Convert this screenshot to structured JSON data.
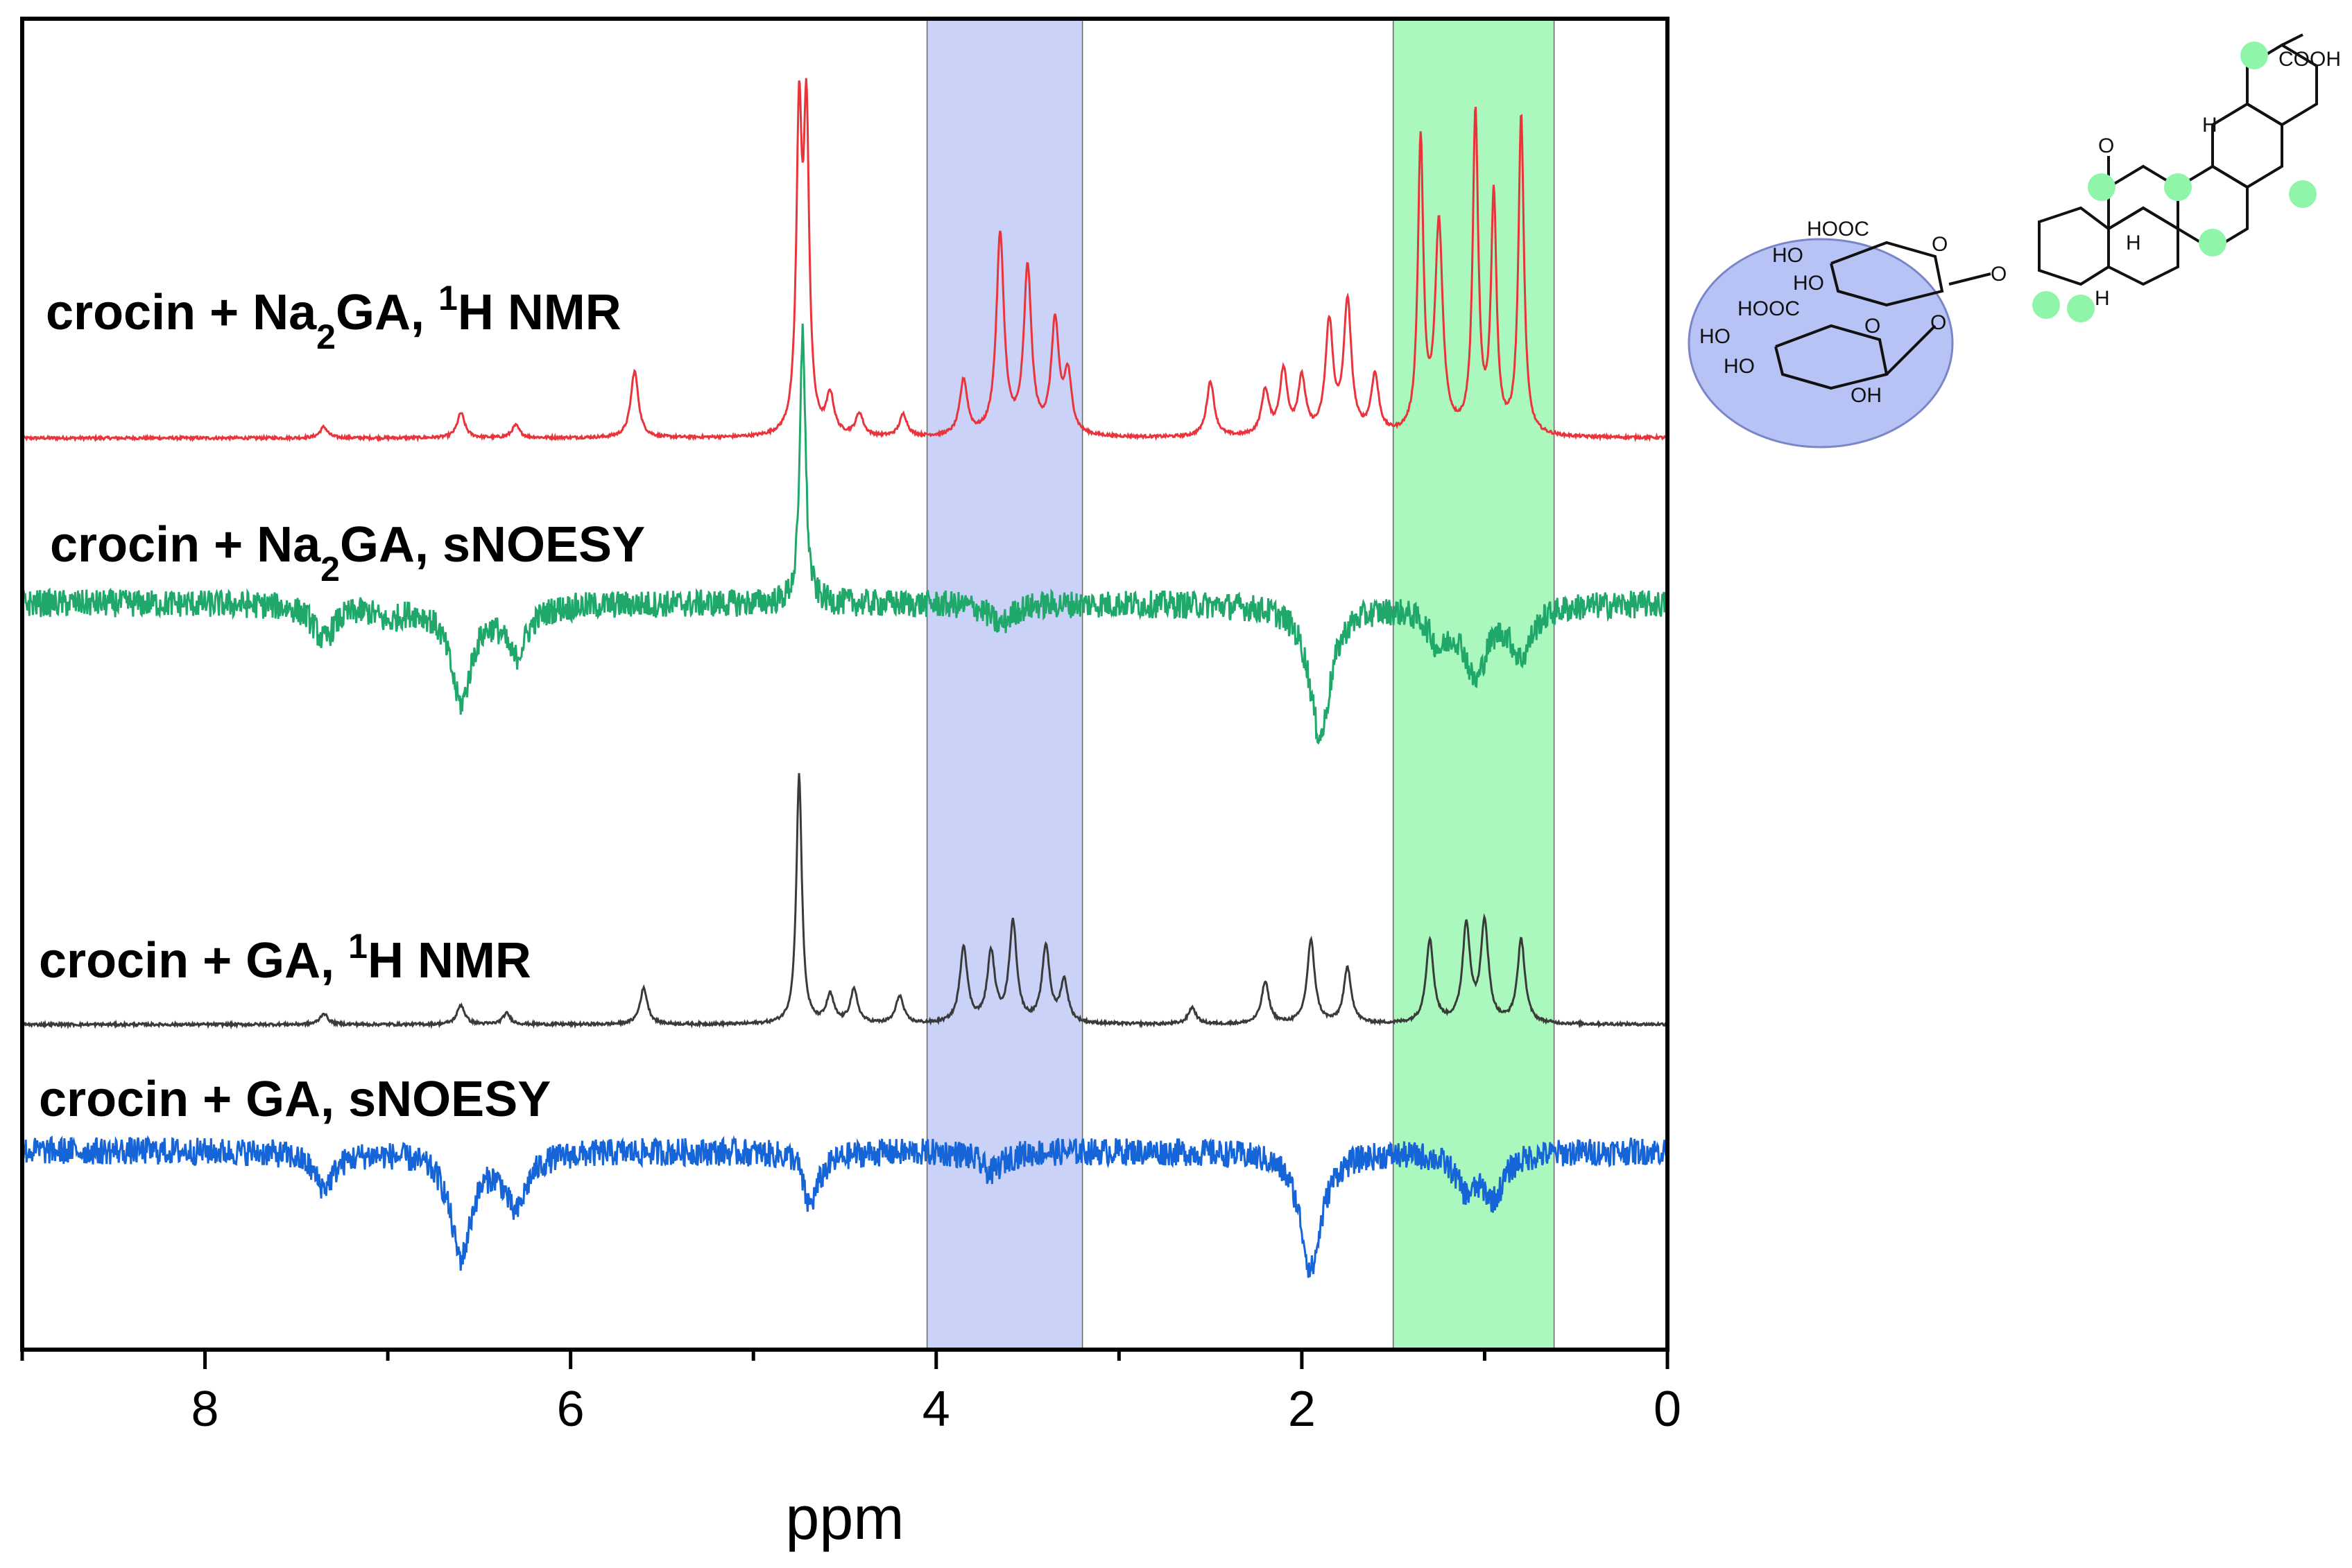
{
  "chart_data": {
    "type": "line",
    "title": "",
    "xlabel": "ppm",
    "ylabel": "",
    "xlim": [
      9.0,
      0.0
    ],
    "x_reversed": true,
    "x_ticks": [
      8,
      6,
      4,
      2,
      0
    ],
    "x_tick_labels": [
      "8",
      "6",
      "4",
      "2",
      "0"
    ],
    "grid": false,
    "highlight_regions": [
      {
        "x_range": [
          4.05,
          3.2
        ],
        "color": "#b8c3f5"
      },
      {
        "x_range": [
          1.5,
          0.62
        ],
        "color": "#8ff5a8"
      }
    ],
    "series": [
      {
        "name": "crocin + Na2GA, 1H NMR",
        "color": "#e8343a",
        "style": "nmr",
        "baseline": 0,
        "peaks": [
          {
            "x": 7.35,
            "y": 8
          },
          {
            "x": 6.6,
            "y": 18
          },
          {
            "x": 6.3,
            "y": 9
          },
          {
            "x": 5.65,
            "y": 48
          },
          {
            "x": 4.75,
            "y": 220
          },
          {
            "x": 4.71,
            "y": 220
          },
          {
            "x": 4.58,
            "y": 28
          },
          {
            "x": 4.42,
            "y": 16
          },
          {
            "x": 4.18,
            "y": 16
          },
          {
            "x": 3.85,
            "y": 40
          },
          {
            "x": 3.65,
            "y": 145
          },
          {
            "x": 3.5,
            "y": 120
          },
          {
            "x": 3.35,
            "y": 80
          },
          {
            "x": 3.28,
            "y": 42
          },
          {
            "x": 2.5,
            "y": 40
          },
          {
            "x": 2.2,
            "y": 32
          },
          {
            "x": 2.1,
            "y": 46
          },
          {
            "x": 2.0,
            "y": 40
          },
          {
            "x": 1.85,
            "y": 80
          },
          {
            "x": 1.75,
            "y": 95
          },
          {
            "x": 1.6,
            "y": 42
          },
          {
            "x": 1.35,
            "y": 210
          },
          {
            "x": 1.25,
            "y": 150
          },
          {
            "x": 1.05,
            "y": 230
          },
          {
            "x": 0.95,
            "y": 170
          },
          {
            "x": 0.8,
            "y": 230
          }
        ]
      },
      {
        "name": "crocin + Na2GA, sNOESY",
        "color": "#1fa86a",
        "style": "noesy",
        "baseline": 0,
        "peaks": [
          {
            "x": 7.35,
            "y": -25
          },
          {
            "x": 7.0,
            "y": -10
          },
          {
            "x": 6.6,
            "y": -70
          },
          {
            "x": 6.3,
            "y": -35
          },
          {
            "x": 4.73,
            "y": 200
          },
          {
            "x": 3.65,
            "y": -15
          },
          {
            "x": 1.9,
            "y": -95
          },
          {
            "x": 1.25,
            "y": -25
          },
          {
            "x": 1.05,
            "y": -50
          },
          {
            "x": 0.8,
            "y": -35
          }
        ]
      },
      {
        "name": "crocin + GA, 1H NMR",
        "color": "#3a3a3a",
        "style": "nmr",
        "baseline": 0,
        "peaks": [
          {
            "x": 7.35,
            "y": 8
          },
          {
            "x": 6.6,
            "y": 14
          },
          {
            "x": 6.35,
            "y": 8
          },
          {
            "x": 5.6,
            "y": 26
          },
          {
            "x": 4.75,
            "y": 180
          },
          {
            "x": 4.58,
            "y": 20
          },
          {
            "x": 4.45,
            "y": 24
          },
          {
            "x": 4.2,
            "y": 20
          },
          {
            "x": 3.85,
            "y": 55
          },
          {
            "x": 3.7,
            "y": 50
          },
          {
            "x": 3.58,
            "y": 72
          },
          {
            "x": 3.4,
            "y": 55
          },
          {
            "x": 3.3,
            "y": 30
          },
          {
            "x": 2.6,
            "y": 12
          },
          {
            "x": 2.2,
            "y": 30
          },
          {
            "x": 1.95,
            "y": 60
          },
          {
            "x": 1.75,
            "y": 40
          },
          {
            "x": 1.3,
            "y": 60
          },
          {
            "x": 1.1,
            "y": 70
          },
          {
            "x": 1.0,
            "y": 72
          },
          {
            "x": 0.8,
            "y": 60
          }
        ]
      },
      {
        "name": "crocin + GA, sNOESY",
        "color": "#1565d8",
        "style": "noesy",
        "baseline": 0,
        "peaks": [
          {
            "x": 7.35,
            "y": -25
          },
          {
            "x": 6.6,
            "y": -75
          },
          {
            "x": 6.3,
            "y": -40
          },
          {
            "x": 4.73,
            "y": 60
          },
          {
            "x": 4.71,
            "y": -90
          },
          {
            "x": 3.7,
            "y": -15
          },
          {
            "x": 1.95,
            "y": -85
          },
          {
            "x": 1.1,
            "y": -25
          },
          {
            "x": 0.95,
            "y": -30
          }
        ]
      }
    ]
  },
  "labels": {
    "trace1": {
      "prefix": "crocin + Na",
      "sub": "2",
      "mid": "GA, ",
      "sup": "1",
      "suffix": "H NMR"
    },
    "trace2": {
      "prefix": "crocin + Na",
      "sub": "2",
      "suffix": "GA, sNOESY"
    },
    "trace3": {
      "prefix": "crocin + GA, ",
      "sup": "1",
      "suffix": "H NMR"
    },
    "trace4": {
      "text": "crocin + GA, sNOESY"
    }
  },
  "structure": {
    "name": "glycyrrhizic acid",
    "labels": {
      "cooh": "COOH",
      "ketone_o": "O",
      "h_top": "H",
      "h_mid": "H",
      "h_low": "H",
      "ether_o": "O",
      "sugar1_cooh": "HOOC",
      "sugar1_ho1": "HO",
      "sugar1_ho2": "HO",
      "sugar1_ring_o": "O",
      "sugar1_link_o": "O",
      "sugar2_cooh": "HOOC",
      "sugar2_ho1": "HO",
      "sugar2_ho2": "HO",
      "sugar2_oh": "OH",
      "sugar2_ring_o": "O"
    },
    "sugar_highlight_color": "#b8c3f5",
    "methyl_highlight_color": "#8ff5a8"
  }
}
